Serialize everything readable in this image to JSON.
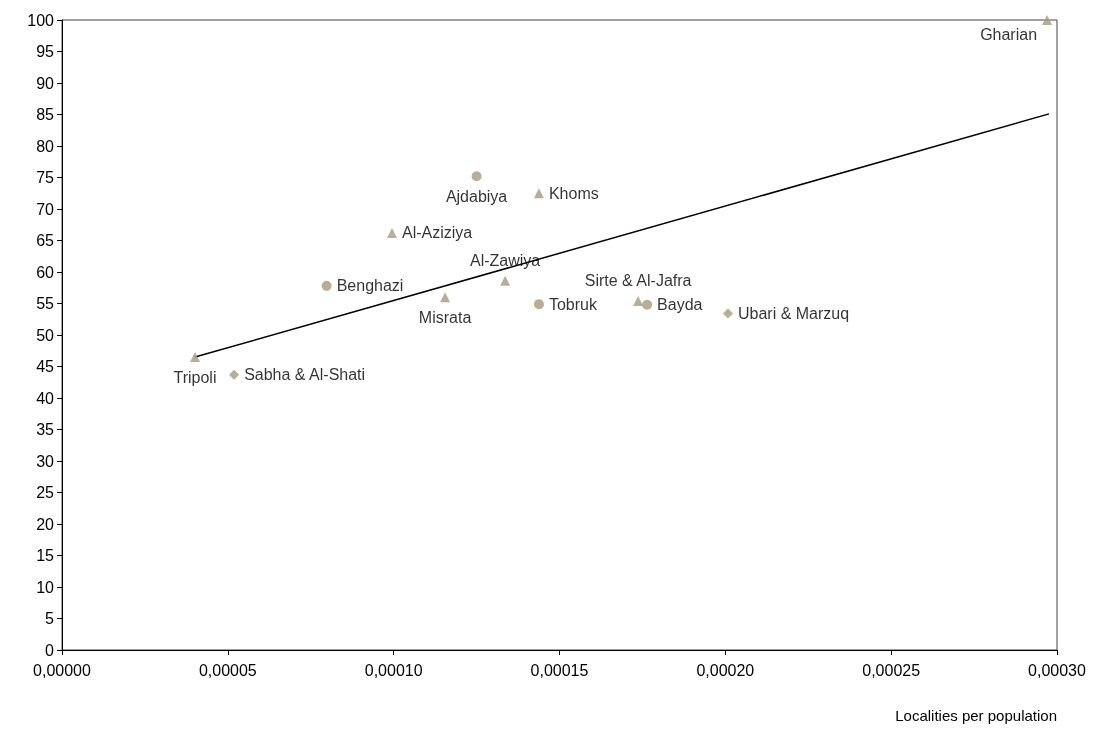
{
  "chart_data": {
    "type": "scatter",
    "xlabel": "Localities per population",
    "xlim": [
      0,
      0.0003
    ],
    "xticks": [
      {
        "value": 0,
        "label": "0,00000"
      },
      {
        "value": 5e-05,
        "label": "0,00005"
      },
      {
        "value": 0.0001,
        "label": "0,00010"
      },
      {
        "value": 0.00015,
        "label": "0,00015"
      },
      {
        "value": 0.0002,
        "label": "0,00020"
      },
      {
        "value": 0.00025,
        "label": "0,00025"
      },
      {
        "value": 0.0003,
        "label": "0,00030"
      }
    ],
    "ylim": [
      0,
      100
    ],
    "yticks": [
      0,
      5,
      10,
      15,
      20,
      25,
      30,
      35,
      40,
      45,
      50,
      55,
      60,
      65,
      70,
      75,
      80,
      85,
      90,
      95,
      100
    ],
    "grid": false,
    "series": [
      {
        "color": "#a69a78",
        "marker": "circle",
        "x": [
          7.98e-05,
          0.000125,
          0.0001438,
          0.0001764
        ],
        "values": [
          57.8,
          75.2,
          54.9,
          54.8
        ],
        "value_labels": [
          "Benghazi",
          "Ajdabiya",
          "Tobruk",
          "Bayda"
        ]
      },
      {
        "color": "#a69a78",
        "marker": "triangle",
        "x": [
          4.01e-05,
          9.95e-05,
          0.0001155,
          0.0001336,
          0.0001438,
          0.0001737,
          0.000297
        ],
        "values": [
          46.5,
          66.2,
          56.0,
          58.6,
          72.5,
          55.4,
          100
        ],
        "value_labels": [
          "Tripoli",
          "Al-Aziziya",
          "Misrata",
          "Al-Zawiya",
          "Khoms",
          "Sirte & Al-Jafra",
          "Gharian"
        ]
      },
      {
        "color": "#a69a78",
        "marker": "diamond",
        "x": [
          5.19e-05,
          0.0002008
        ],
        "values": [
          43.7,
          53.4
        ],
        "value_labels": [
          "Sabha & Al-Shati",
          "Ubari & Marzuq"
        ]
      },
      {
        "type": "line",
        "color": "#000000",
        "marker": "none",
        "x": [
          4.01e-05,
          0.0002976
        ],
        "values": [
          46.5,
          85.1
        ]
      }
    ]
  }
}
